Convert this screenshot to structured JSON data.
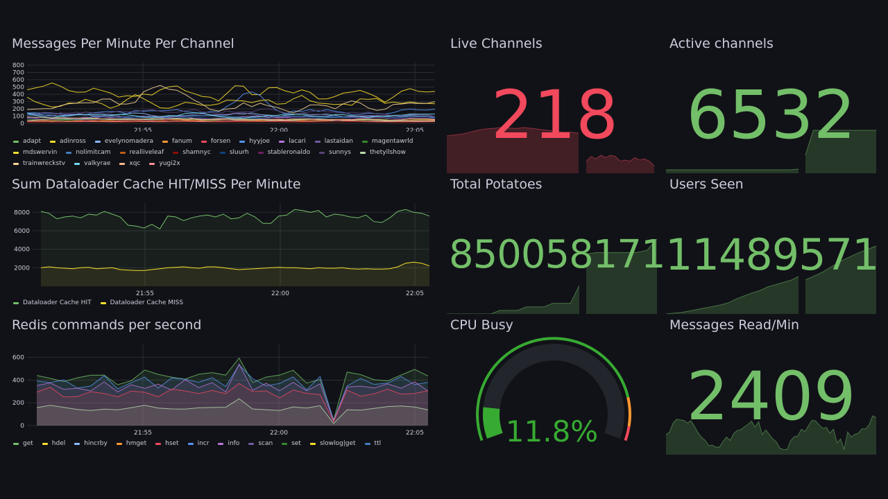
{
  "time_ticks": [
    "21:55",
    "22:00",
    "22:05"
  ],
  "panels": {
    "messages": {
      "title": "Messages Per Minute Per Channel",
      "y_ticks": [
        "800",
        "700",
        "600",
        "500",
        "400",
        "300",
        "200",
        "100",
        "0"
      ],
      "legend": [
        {
          "name": "adapt",
          "color": "#73bf69"
        },
        {
          "name": "adinross",
          "color": "#fade2a"
        },
        {
          "name": "evelynomadera",
          "color": "#8ab8ff"
        },
        {
          "name": "fanum",
          "color": "#ff9830"
        },
        {
          "name": "forsen",
          "color": "#f2495c"
        },
        {
          "name": "hyyjoe",
          "color": "#5794f2"
        },
        {
          "name": "lacari",
          "color": "#b877d9"
        },
        {
          "name": "lastaidan",
          "color": "#705da0"
        },
        {
          "name": "magentawrld",
          "color": "#37872d"
        },
        {
          "name": "mdswervin",
          "color": "#fade2a"
        },
        {
          "name": "nolimitcam",
          "color": "#447ebc"
        },
        {
          "name": "realliveleaf",
          "color": "#c15c17"
        },
        {
          "name": "shamnyc",
          "color": "#890f02"
        },
        {
          "name": "sluurh",
          "color": "#0a437c"
        },
        {
          "name": "stableronaldo",
          "color": "#6d1f62"
        },
        {
          "name": "sunnys",
          "color": "#584477"
        },
        {
          "name": "thetyllshow",
          "color": "#b7dbab"
        },
        {
          "name": "trainwreckstv",
          "color": "#f4d598"
        },
        {
          "name": "valkyrae",
          "color": "#70dbed"
        },
        {
          "name": "xqc",
          "color": "#f9ba8f"
        },
        {
          "name": "yugi2x",
          "color": "#f29191"
        }
      ]
    },
    "cache": {
      "title": "Sum Dataloader Cache HIT/MISS Per Minute",
      "y_ticks": [
        "8000",
        "6000",
        "4000",
        "2000"
      ],
      "legend": [
        {
          "name": "Dataloader Cache HIT",
          "color": "#73bf69"
        },
        {
          "name": "Dataloader Cache MISS",
          "color": "#fade2a"
        }
      ],
      "chart_data": {
        "type": "line",
        "series": [
          {
            "name": "Dataloader Cache HIT",
            "values": [
              8100,
              7900,
              7300,
              7500,
              7600,
              7400,
              7800,
              7700,
              8100,
              7800,
              7500,
              6600,
              6500,
              6300,
              6700,
              6200,
              7600,
              7500,
              7100,
              7400,
              7600,
              7700,
              7500,
              7800,
              7300,
              7400,
              7900,
              7500,
              6800,
              6800,
              7600,
              7700,
              8300,
              8200,
              8000,
              8200,
              7500,
              7800,
              7700,
              7500,
              7400,
              7700,
              7000,
              6900,
              7400,
              8100,
              8300,
              8000,
              7900,
              7600
            ]
          },
          {
            "name": "Dataloader Cache MISS",
            "values": [
              2000,
              2100,
              2000,
              1950,
              1900,
              2000,
              2050,
              1900,
              1950,
              2000,
              1800,
              1750,
              1700,
              1700,
              1800,
              1900,
              2000,
              2050,
              2100,
              2000,
              1950,
              2100,
              2100,
              2000,
              1900,
              1800,
              1850,
              1900,
              1950,
              2000,
              2050,
              2000,
              2000,
              1950,
              1900,
              2000,
              1950,
              1950,
              2000,
              1900,
              1850,
              1900,
              1850,
              1850,
              1900,
              2100,
              2500,
              2600,
              2500,
              2200
            ]
          }
        ]
      }
    },
    "redis": {
      "title": "Redis commands per second",
      "y_ticks": [
        "600",
        "400",
        "200",
        "0"
      ],
      "legend": [
        {
          "name": "get",
          "color": "#73bf69"
        },
        {
          "name": "hdel",
          "color": "#fade2a"
        },
        {
          "name": "hincrby",
          "color": "#8ab8ff"
        },
        {
          "name": "hmget",
          "color": "#ff9830"
        },
        {
          "name": "hset",
          "color": "#f2495c"
        },
        {
          "name": "incr",
          "color": "#5794f2"
        },
        {
          "name": "info",
          "color": "#b877d9"
        },
        {
          "name": "scan",
          "color": "#705da0"
        },
        {
          "name": "set",
          "color": "#37872d"
        },
        {
          "name": "slowlog|get",
          "color": "#fade2a"
        },
        {
          "name": "ttl",
          "color": "#447ebc"
        }
      ]
    },
    "live_channels": {
      "title": "Live Channels",
      "value": "218",
      "color": "#f2495c"
    },
    "active_channels": {
      "title": "Active channels",
      "value": "6532",
      "color": "#73bf69"
    },
    "total_potatoes": {
      "title": "Total Potatoes",
      "value": "850058171",
      "color": "#73bf69"
    },
    "users_seen": {
      "title": "Users Seen",
      "value": "11489571",
      "color": "#73bf69"
    },
    "cpu_busy": {
      "title": "CPU Busy",
      "value": "11.8%",
      "percent": 11.8,
      "color": "#37aa32"
    },
    "messages_read": {
      "title": "Messages Read/Min",
      "value": "2409",
      "color": "#73bf69"
    }
  }
}
